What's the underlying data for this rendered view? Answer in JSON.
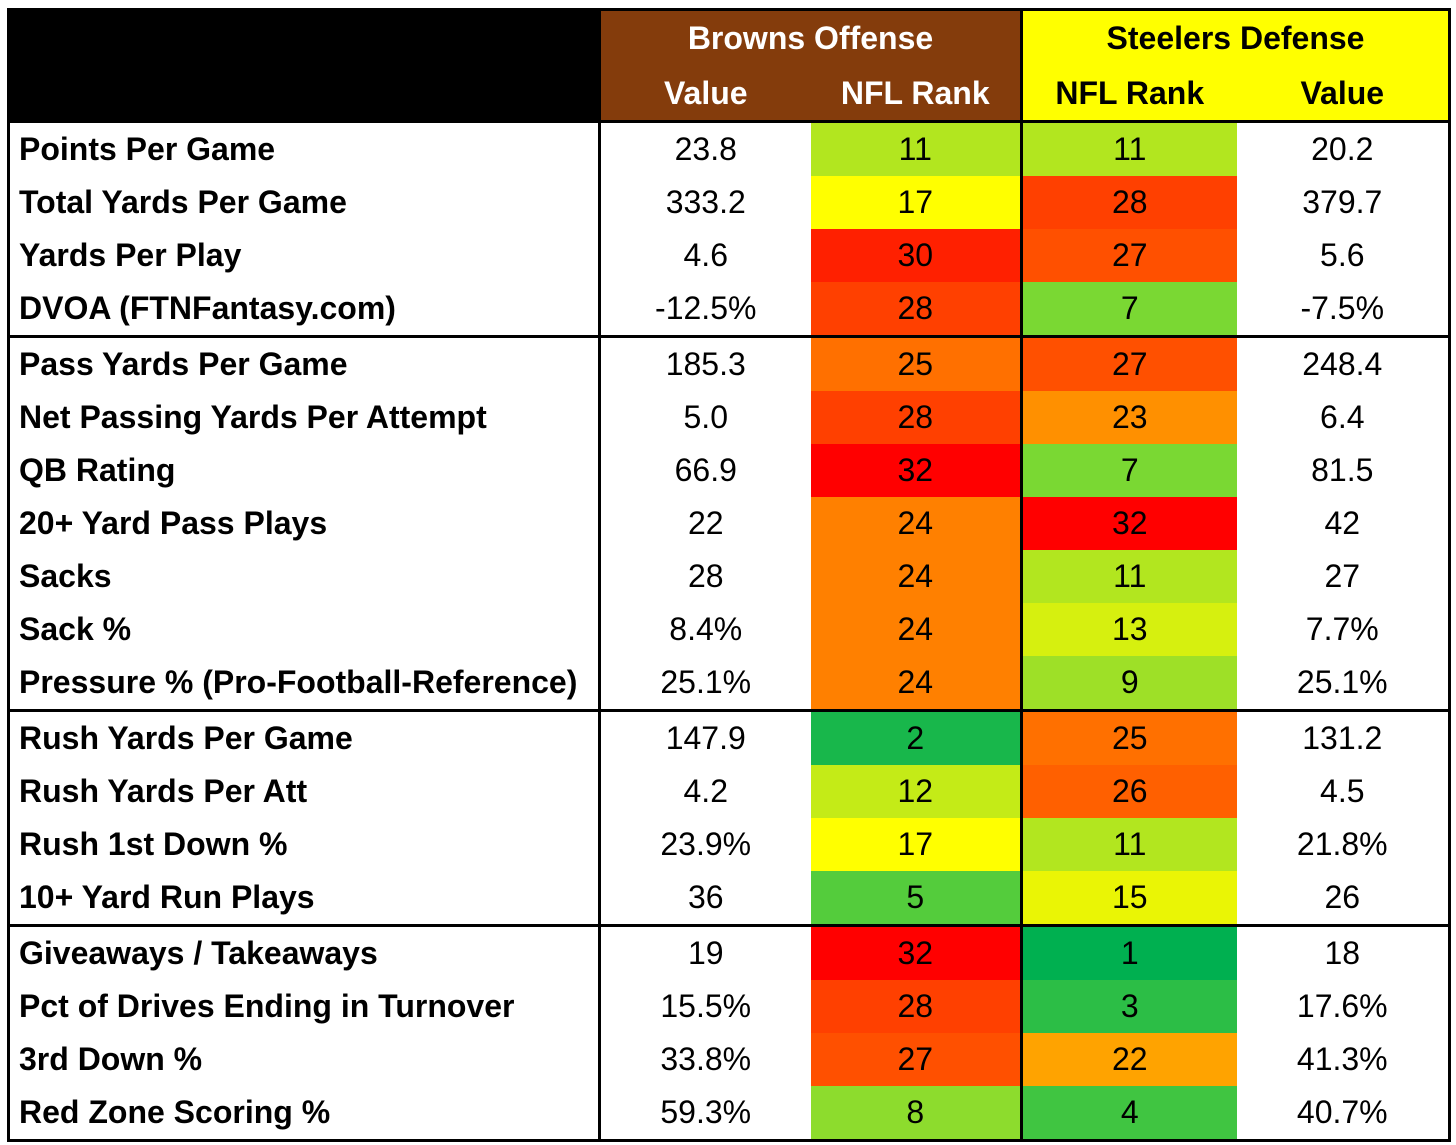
{
  "header": {
    "offense_team": "Browns Offense",
    "defense_team": "Steelers Defense",
    "value_label": "Value",
    "rank_label": "NFL Rank",
    "offense_color": "#843C0C",
    "defense_color": "#FFFF00"
  },
  "groups": [
    {
      "rows": [
        {
          "stat": "Points Per Game",
          "off_value": "23.8",
          "off_rank": "11",
          "def_rank": "11",
          "def_value": "20.2"
        },
        {
          "stat": "Total Yards Per Game",
          "off_value": "333.2",
          "off_rank": "17",
          "def_rank": "28",
          "def_value": "379.7"
        },
        {
          "stat": "Yards Per Play",
          "off_value": "4.6",
          "off_rank": "30",
          "def_rank": "27",
          "def_value": "5.6"
        },
        {
          "stat": "DVOA (FTNFantasy.com)",
          "off_value": "-12.5%",
          "off_rank": "28",
          "def_rank": "7",
          "def_value": "-7.5%"
        }
      ]
    },
    {
      "rows": [
        {
          "stat": "Pass Yards Per Game",
          "off_value": "185.3",
          "off_rank": "25",
          "def_rank": "27",
          "def_value": "248.4"
        },
        {
          "stat": "Net Passing Yards Per Attempt",
          "off_value": "5.0",
          "off_rank": "28",
          "def_rank": "23",
          "def_value": "6.4"
        },
        {
          "stat": "QB Rating",
          "off_value": "66.9",
          "off_rank": "32",
          "def_rank": "7",
          "def_value": "81.5"
        },
        {
          "stat": "20+ Yard Pass Plays",
          "off_value": "22",
          "off_rank": "24",
          "def_rank": "32",
          "def_value": "42"
        },
        {
          "stat": "Sacks",
          "off_value": "28",
          "off_rank": "24",
          "def_rank": "11",
          "def_value": "27"
        },
        {
          "stat": "Sack %",
          "off_value": "8.4%",
          "off_rank": "24",
          "def_rank": "13",
          "def_value": "7.7%"
        },
        {
          "stat": "Pressure % (Pro-Football-Reference)",
          "off_value": "25.1%",
          "off_rank": "24",
          "def_rank": "9",
          "def_value": "25.1%"
        }
      ]
    },
    {
      "rows": [
        {
          "stat": "Rush Yards Per Game",
          "off_value": "147.9",
          "off_rank": "2",
          "def_rank": "25",
          "def_value": "131.2"
        },
        {
          "stat": "Rush Yards Per Att",
          "off_value": "4.2",
          "off_rank": "12",
          "def_rank": "26",
          "def_value": "4.5"
        },
        {
          "stat": "Rush 1st Down %",
          "off_value": "23.9%",
          "off_rank": "17",
          "def_rank": "11",
          "def_value": "21.8%"
        },
        {
          "stat": "10+ Yard Run Plays",
          "off_value": "36",
          "off_rank": "5",
          "def_rank": "15",
          "def_value": "26"
        }
      ]
    },
    {
      "rows": [
        {
          "stat": "Giveaways / Takeaways",
          "off_value": "19",
          "off_rank": "32",
          "def_rank": "1",
          "def_value": "18"
        },
        {
          "stat": "Pct of Drives Ending in Turnover",
          "off_value": "15.5%",
          "off_rank": "28",
          "def_rank": "3",
          "def_value": "17.6%"
        },
        {
          "stat": "3rd Down %",
          "off_value": "33.8%",
          "off_rank": "27",
          "def_rank": "22",
          "def_value": "41.3%"
        },
        {
          "stat": "Red Zone Scoring %",
          "off_value": "59.3%",
          "off_rank": "8",
          "def_rank": "4",
          "def_value": "40.7%"
        }
      ]
    }
  ],
  "rank_colors": {
    "1": "#00B050",
    "2": "#18B74B",
    "3": "#2CBE46",
    "4": "#40C541",
    "5": "#54CC3C",
    "7": "#7AD833",
    "8": "#8DDC2D",
    "9": "#9EE027",
    "11": "#B2E61F",
    "12": "#C4EB17",
    "13": "#D6F00F",
    "15": "#EAF505",
    "17": "#FFFF00",
    "22": "#FFA300",
    "23": "#FF9000",
    "24": "#FF8000",
    "25": "#FF7000",
    "26": "#FF6000",
    "27": "#FF5000",
    "28": "#FF4000",
    "30": "#FF2000",
    "32": "#FF0000"
  }
}
